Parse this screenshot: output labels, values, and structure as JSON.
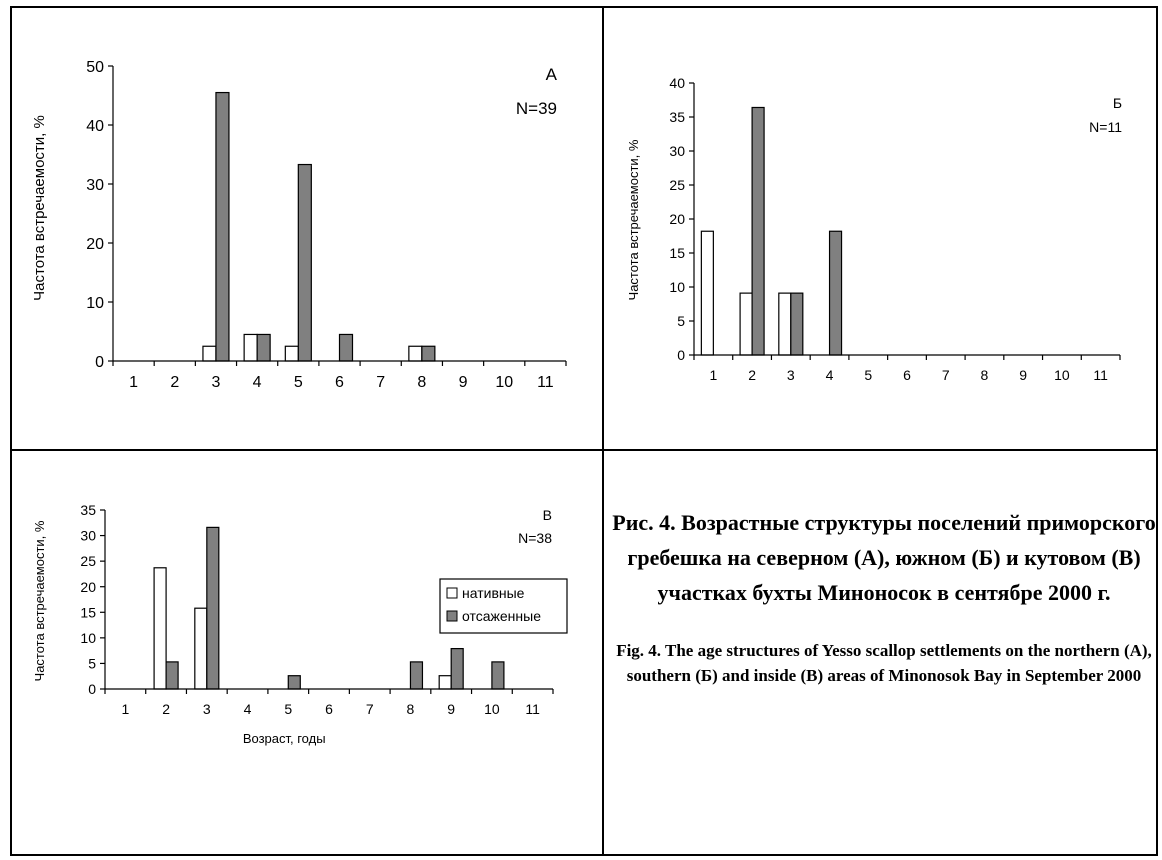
{
  "caption": {
    "ru": "Рис. 4. Возрастные структуры поселений приморского гребешка на северном (А), южном (Б) и кутовом (В) участках бухты Миноносок в сентябре 2000 г.",
    "en": "Fig. 4. The age structures of Yesso scallop settlements on the northern (А), southern (Б) and inside (В) areas of Minonosok Bay  in September 2000"
  },
  "colors": {
    "native": "#ffffff",
    "transplanted": "#808080",
    "axis": "#000000"
  },
  "chart_data": [
    {
      "type": "bar",
      "panel_label": "А",
      "n_label": "N=39",
      "ylabel": "Частота встречаемости, %",
      "xlabel": "",
      "categories": [
        "1",
        "2",
        "3",
        "4",
        "5",
        "6",
        "7",
        "8",
        "9",
        "10",
        "11"
      ],
      "ylim": [
        0,
        50
      ],
      "yticks": [
        0,
        10,
        20,
        30,
        40,
        50
      ],
      "series": [
        {
          "key": "native",
          "values": [
            0,
            0,
            2.5,
            4.5,
            2.5,
            0,
            0,
            2.5,
            0,
            0,
            0
          ]
        },
        {
          "key": "transplanted",
          "values": [
            0,
            0,
            45.5,
            4.5,
            33.3,
            4.5,
            0,
            2.5,
            0,
            0,
            0
          ]
        }
      ]
    },
    {
      "type": "bar",
      "panel_label": "Б",
      "n_label": "N=11",
      "ylabel": "Частота встречаемости, %",
      "xlabel": "",
      "categories": [
        "1",
        "2",
        "3",
        "4",
        "5",
        "6",
        "7",
        "8",
        "9",
        "10",
        "11"
      ],
      "ylim": [
        0,
        40
      ],
      "yticks": [
        0,
        5,
        10,
        15,
        20,
        25,
        30,
        35,
        40
      ],
      "series": [
        {
          "key": "native",
          "values": [
            18.2,
            9.1,
            9.1,
            0,
            0,
            0,
            0,
            0,
            0,
            0,
            0
          ]
        },
        {
          "key": "transplanted",
          "values": [
            0,
            36.4,
            9.1,
            18.2,
            0,
            0,
            0,
            0,
            0,
            0,
            0
          ]
        }
      ]
    },
    {
      "type": "bar",
      "panel_label": "В",
      "n_label": "N=38",
      "ylabel": "Частота встречаемости, %",
      "xlabel": "Возраст, годы",
      "categories": [
        "1",
        "2",
        "3",
        "4",
        "5",
        "6",
        "7",
        "8",
        "9",
        "10",
        "11"
      ],
      "ylim": [
        0,
        35
      ],
      "yticks": [
        0,
        5,
        10,
        15,
        20,
        25,
        30,
        35
      ],
      "legend": {
        "position": "right",
        "entries": [
          {
            "key": "native",
            "label": "нативные"
          },
          {
            "key": "transplanted",
            "label": "отсаженные"
          }
        ]
      },
      "series": [
        {
          "key": "native",
          "values": [
            0,
            23.7,
            15.8,
            0,
            0,
            0,
            0,
            0,
            2.6,
            0,
            0
          ]
        },
        {
          "key": "transplanted",
          "values": [
            0,
            5.3,
            31.6,
            0,
            2.6,
            0,
            0,
            5.3,
            7.9,
            5.3,
            0
          ]
        }
      ]
    }
  ]
}
